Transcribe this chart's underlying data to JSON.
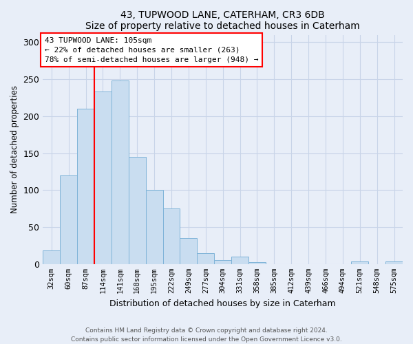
{
  "title1": "43, TUPWOOD LANE, CATERHAM, CR3 6DB",
  "title2": "Size of property relative to detached houses in Caterham",
  "xlabel": "Distribution of detached houses by size in Caterham",
  "ylabel": "Number of detached properties",
  "categories": [
    "32sqm",
    "60sqm",
    "87sqm",
    "114sqm",
    "141sqm",
    "168sqm",
    "195sqm",
    "222sqm",
    "249sqm",
    "277sqm",
    "304sqm",
    "331sqm",
    "358sqm",
    "385sqm",
    "412sqm",
    "439sqm",
    "466sqm",
    "494sqm",
    "521sqm",
    "548sqm",
    "575sqm"
  ],
  "values": [
    18,
    120,
    210,
    233,
    248,
    145,
    100,
    75,
    35,
    15,
    5,
    10,
    3,
    0,
    0,
    0,
    0,
    0,
    4,
    0,
    4
  ],
  "bar_color": "#c9ddf0",
  "bar_edge_color": "#7eb3d8",
  "vline_color": "red",
  "vline_x": 2.5,
  "annotation_text": "43 TUPWOOD LANE: 105sqm\n← 22% of detached houses are smaller (263)\n78% of semi-detached houses are larger (948) →",
  "annotation_box_facecolor": "white",
  "annotation_box_edgecolor": "red",
  "ylim": [
    0,
    310
  ],
  "yticks": [
    0,
    50,
    100,
    150,
    200,
    250,
    300
  ],
  "bg_color": "#e8eef8",
  "grid_color": "#c8d4e8",
  "footer1": "Contains HM Land Registry data © Crown copyright and database right 2024.",
  "footer2": "Contains public sector information licensed under the Open Government Licence v3.0."
}
